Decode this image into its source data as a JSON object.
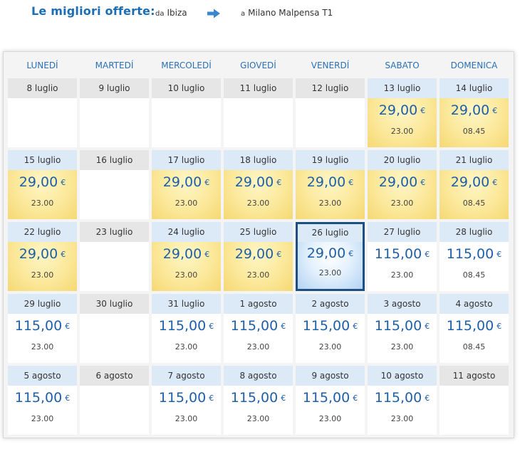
{
  "header": {
    "title": "Le migliori offerte:",
    "from_prefix": "da",
    "from_city": "Ibiza",
    "to_prefix": "a",
    "to_city": "Milano Malpensa T1",
    "arrow_icon": "arrow-right-icon"
  },
  "weekdays": [
    "LUNEDÍ",
    "MARTEDÍ",
    "MERCOLEDÍ",
    "GIOVEDÍ",
    "VENERDÍ",
    "SABATO",
    "DOMENICA"
  ],
  "currency": "€",
  "colors": {
    "accent": "#1b6db5",
    "price": "#1e5fa8",
    "cheap_fill": "#fbe89a",
    "selected_border": "#1c4f83"
  },
  "weeks": [
    [
      {
        "date": "8 luglio"
      },
      {
        "date": "9 luglio"
      },
      {
        "date": "10 luglio"
      },
      {
        "date": "11 luglio"
      },
      {
        "date": "12 luglio"
      },
      {
        "date": "13 luglio",
        "price": "29,00",
        "time": "23.00",
        "cheap": true
      },
      {
        "date": "14 luglio",
        "price": "29,00",
        "time": "08.45",
        "cheap": true
      }
    ],
    [
      {
        "date": "15 luglio",
        "price": "29,00",
        "time": "23.00",
        "cheap": true
      },
      {
        "date": "16 luglio"
      },
      {
        "date": "17 luglio",
        "price": "29,00",
        "time": "23.00",
        "cheap": true
      },
      {
        "date": "18 luglio",
        "price": "29,00",
        "time": "23.00",
        "cheap": true
      },
      {
        "date": "19 luglio",
        "price": "29,00",
        "time": "23.00",
        "cheap": true
      },
      {
        "date": "20 luglio",
        "price": "29,00",
        "time": "23.00",
        "cheap": true
      },
      {
        "date": "21 luglio",
        "price": "29,00",
        "time": "08.45",
        "cheap": true
      }
    ],
    [
      {
        "date": "22 luglio",
        "price": "29,00",
        "time": "23.00",
        "cheap": true
      },
      {
        "date": "23 luglio"
      },
      {
        "date": "24 luglio",
        "price": "29,00",
        "time": "23.00",
        "cheap": true
      },
      {
        "date": "25 luglio",
        "price": "29,00",
        "time": "23.00",
        "cheap": true
      },
      {
        "date": "26 luglio",
        "price": "29,00",
        "time": "23.00",
        "selected": true
      },
      {
        "date": "27 luglio",
        "price": "115,00",
        "time": "23.00"
      },
      {
        "date": "28 luglio",
        "price": "115,00",
        "time": "08.45"
      }
    ],
    [
      {
        "date": "29 luglio",
        "price": "115,00",
        "time": "23.00"
      },
      {
        "date": "30 luglio"
      },
      {
        "date": "31 luglio",
        "price": "115,00",
        "time": "23.00"
      },
      {
        "date": "1 agosto",
        "price": "115,00",
        "time": "23.00"
      },
      {
        "date": "2 agosto",
        "price": "115,00",
        "time": "23.00"
      },
      {
        "date": "3 agosto",
        "price": "115,00",
        "time": "23.00"
      },
      {
        "date": "4 agosto",
        "price": "115,00",
        "time": "08.45"
      }
    ],
    [
      {
        "date": "5 agosto",
        "price": "115,00",
        "time": "23.00"
      },
      {
        "date": "6 agosto"
      },
      {
        "date": "7 agosto",
        "price": "115,00",
        "time": "23.00"
      },
      {
        "date": "8 agosto",
        "price": "115,00",
        "time": "23.00"
      },
      {
        "date": "9 agosto",
        "price": "115,00",
        "time": "23.00"
      },
      {
        "date": "10 agosto",
        "price": "115,00",
        "time": "23.00"
      },
      {
        "date": "11 agosto"
      }
    ]
  ]
}
